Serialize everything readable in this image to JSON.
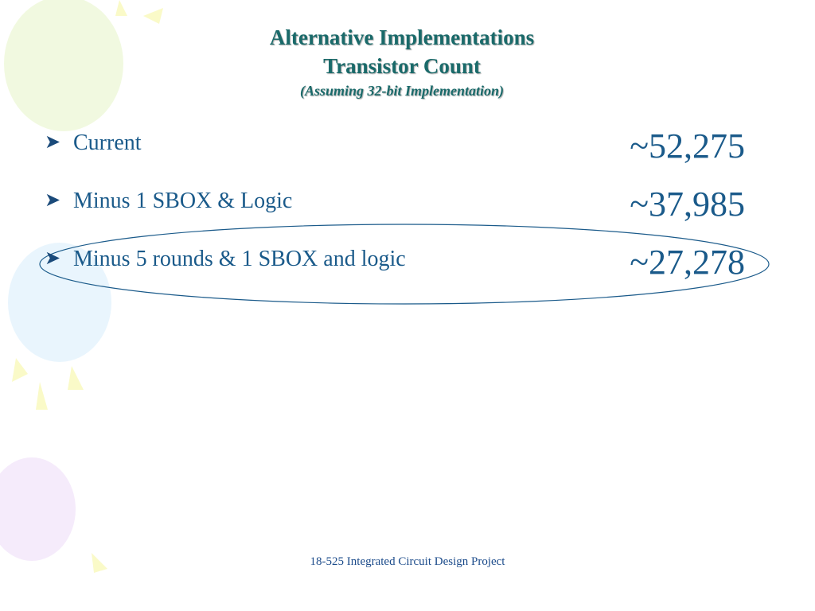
{
  "header": {
    "title": "Alternative Implementations",
    "subtitle": "Transistor Count",
    "note": "(Assuming 32-bit Implementation)"
  },
  "items": [
    {
      "label": "Current",
      "value": "~52,275"
    },
    {
      "label": "Minus 1 SBOX & Logic",
      "value": "~37,985"
    },
    {
      "label": "Minus 5 rounds & 1 SBOX and logic",
      "value": "~27,278"
    }
  ],
  "footer": "18-525 Integrated Circuit Design Project"
}
